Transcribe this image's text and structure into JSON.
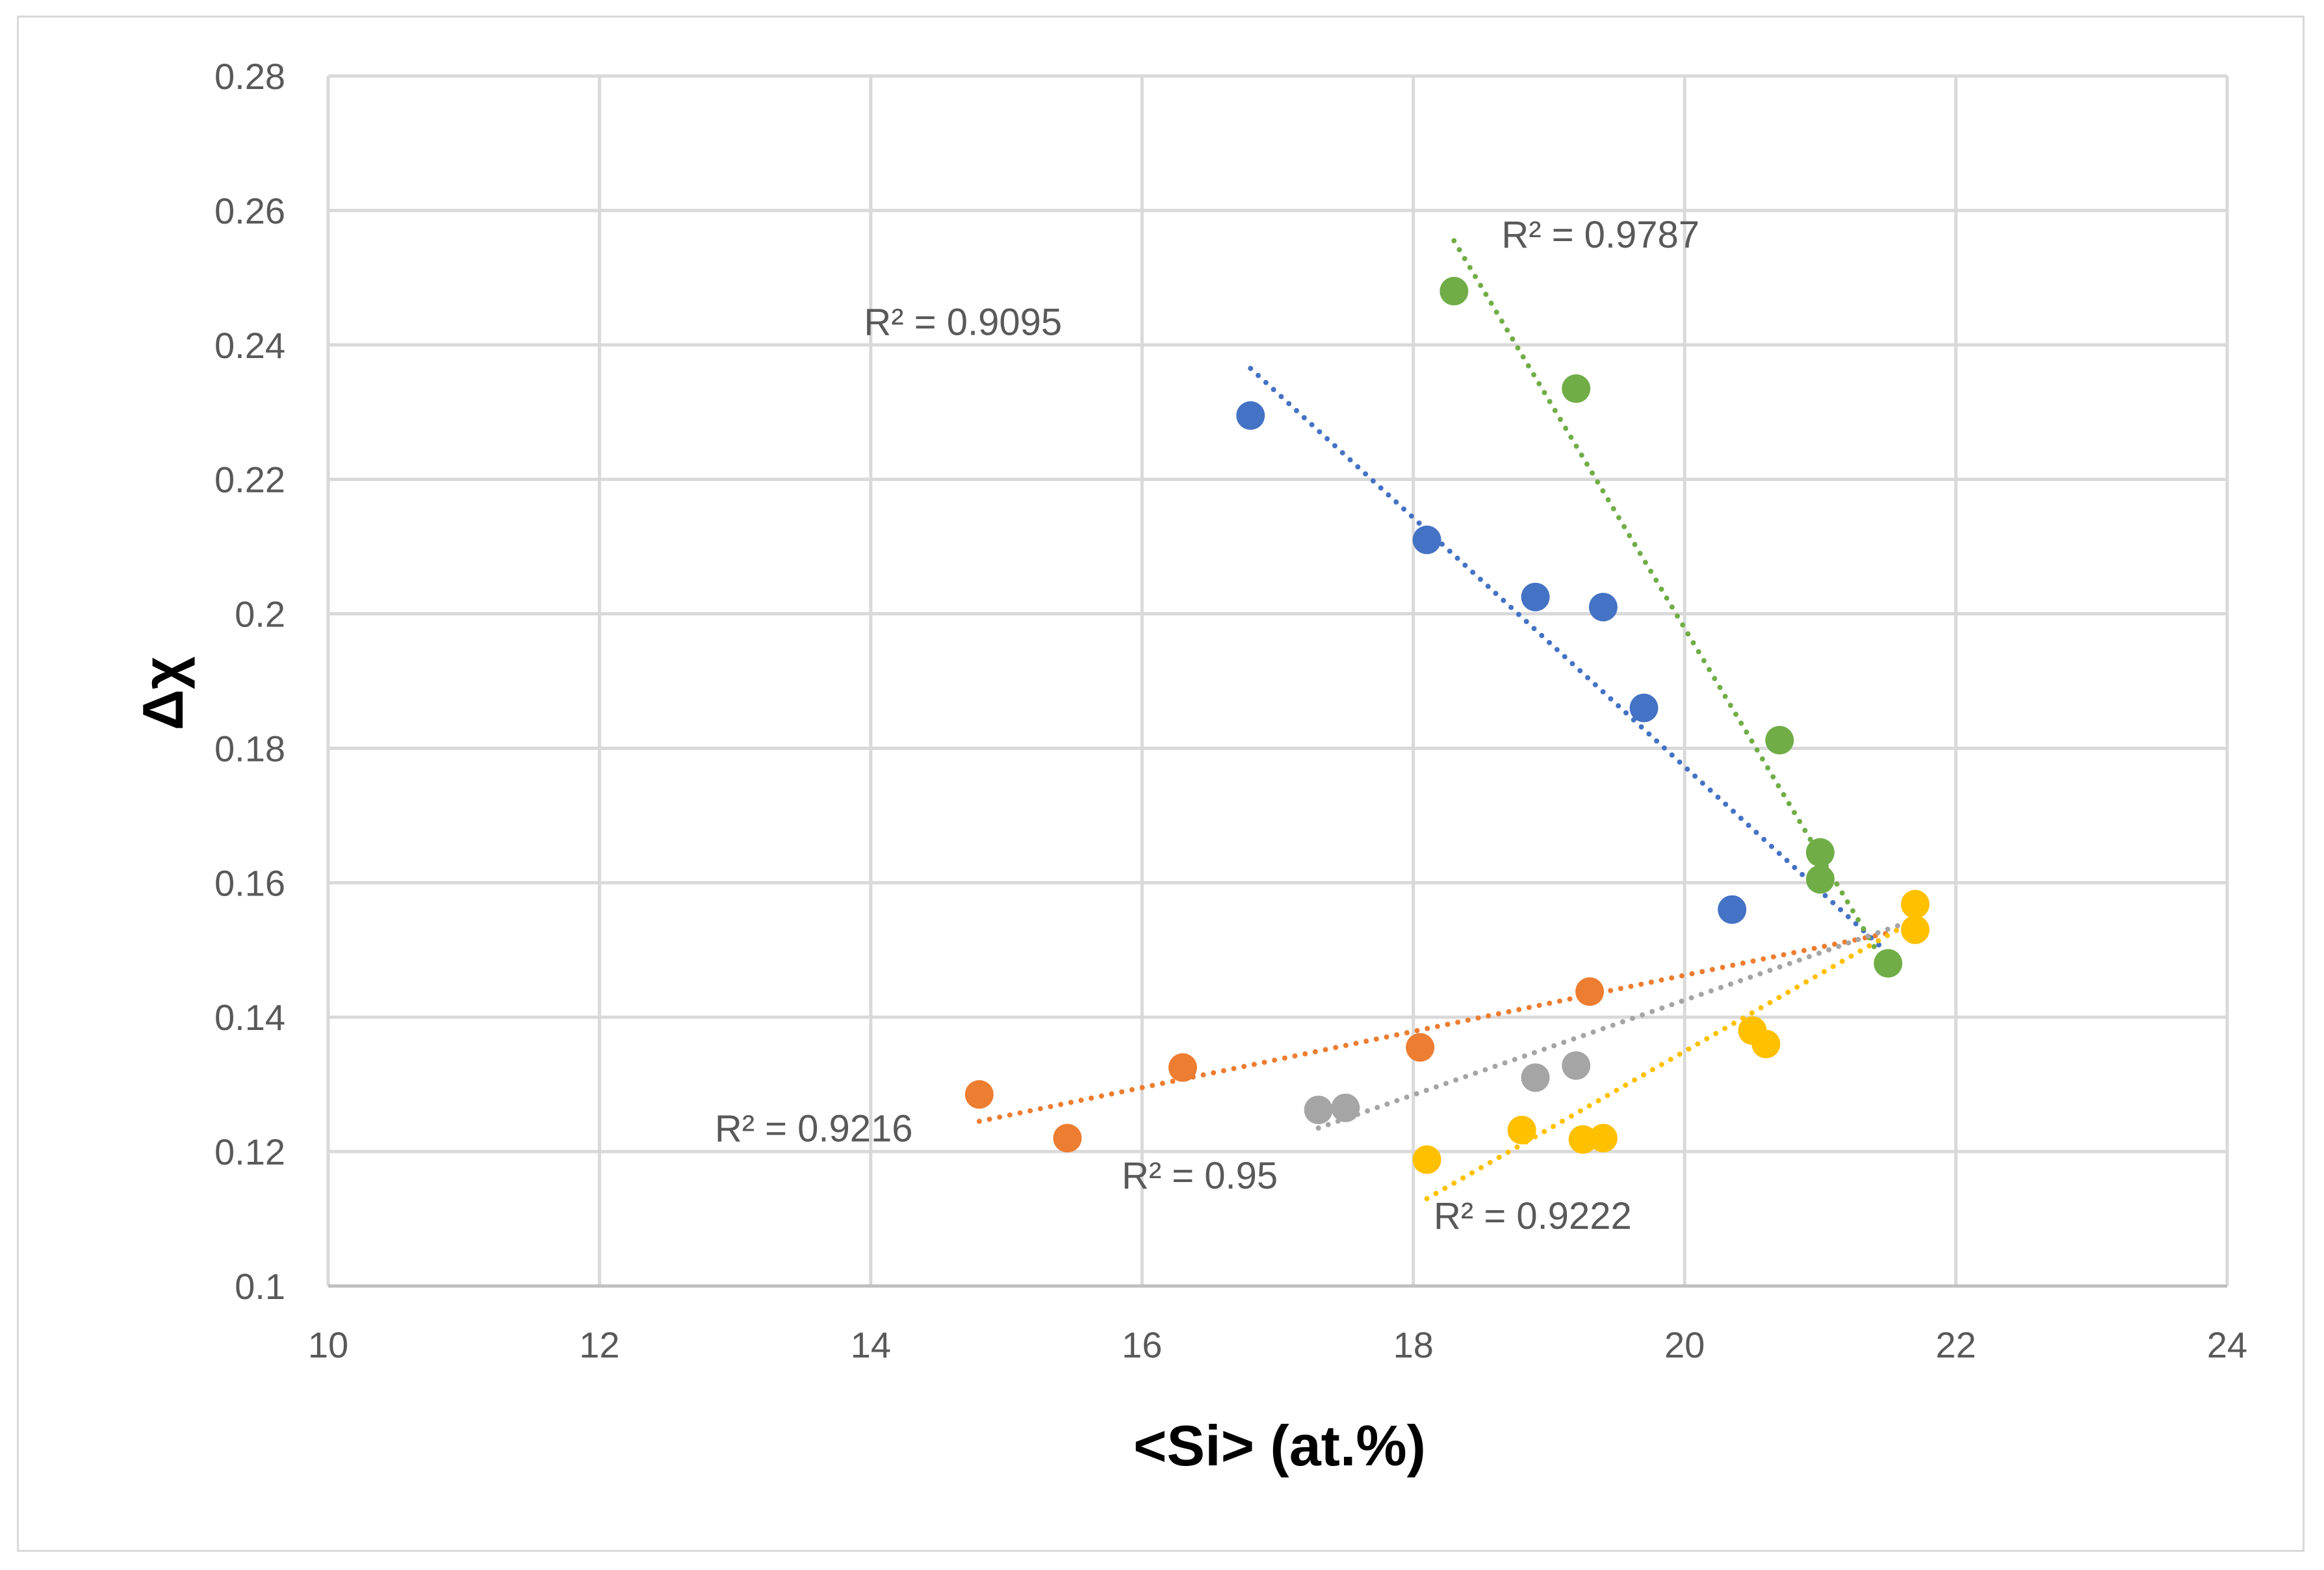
{
  "chart_data": {
    "type": "scatter",
    "title": "",
    "xlabel": "<Si> (at.%)",
    "ylabel": "Δχ",
    "xlim": [
      10,
      24
    ],
    "ylim": [
      0.1,
      0.28
    ],
    "x_ticks": [
      "10",
      "12",
      "14",
      "16",
      "18",
      "20",
      "22",
      "24"
    ],
    "y_ticks": [
      "0.1",
      "0.12",
      "0.14",
      "0.16",
      "0.18",
      "0.2",
      "0.22",
      "0.24",
      "0.26",
      "0.28"
    ],
    "grid": true,
    "legend": "none",
    "series": [
      {
        "name": "blue",
        "color": "#4472C4",
        "points": [
          [
            16.8,
            0.2295
          ],
          [
            18.1,
            0.211
          ],
          [
            18.9,
            0.2025
          ],
          [
            19.4,
            0.201
          ],
          [
            19.7,
            0.186
          ],
          [
            20.35,
            0.156
          ]
        ],
        "trendline": {
          "x": [
            16.8,
            21.5
          ],
          "y": [
            0.2365,
            0.1495
          ]
        },
        "r2": "R² = 0.9095"
      },
      {
        "name": "green",
        "color": "#70AD47",
        "points": [
          [
            18.3,
            0.248
          ],
          [
            19.2,
            0.2335
          ],
          [
            20.7,
            0.1812
          ],
          [
            21.0,
            0.1645
          ],
          [
            21.0,
            0.1605
          ],
          [
            21.5,
            0.148
          ]
        ],
        "trendline": {
          "x": [
            18.3,
            21.5
          ],
          "y": [
            0.2555,
            0.147
          ]
        },
        "r2": "R² = 0.9787"
      },
      {
        "name": "orange",
        "color": "#ED7D31",
        "points": [
          [
            14.8,
            0.1285
          ],
          [
            15.45,
            0.122
          ],
          [
            16.3,
            0.1325
          ],
          [
            18.05,
            0.1355
          ],
          [
            19.3,
            0.1438
          ]
        ],
        "trendline": {
          "x": [
            14.8,
            21.5
          ],
          "y": [
            0.1245,
            0.1525
          ]
        },
        "r2": "R² = 0.9216"
      },
      {
        "name": "gray",
        "color": "#A5A5A5",
        "points": [
          [
            17.3,
            0.1262
          ],
          [
            17.5,
            0.1265
          ],
          [
            18.9,
            0.131
          ],
          [
            19.2,
            0.1328
          ]
        ],
        "trendline": {
          "x": [
            17.3,
            21.7
          ],
          "y": [
            0.1235,
            0.1545
          ]
        },
        "r2": "R² = 0.95"
      },
      {
        "name": "yellow",
        "color": "#FFC000",
        "points": [
          [
            18.1,
            0.1188
          ],
          [
            18.8,
            0.1232
          ],
          [
            19.25,
            0.1218
          ],
          [
            19.4,
            0.122
          ],
          [
            20.5,
            0.138
          ],
          [
            20.6,
            0.136
          ],
          [
            21.7,
            0.1568
          ],
          [
            21.7,
            0.153
          ]
        ],
        "trendline": {
          "x": [
            18.1,
            21.7
          ],
          "y": [
            0.113,
            0.1545
          ]
        },
        "r2": "R² = 0.9222"
      }
    ]
  }
}
